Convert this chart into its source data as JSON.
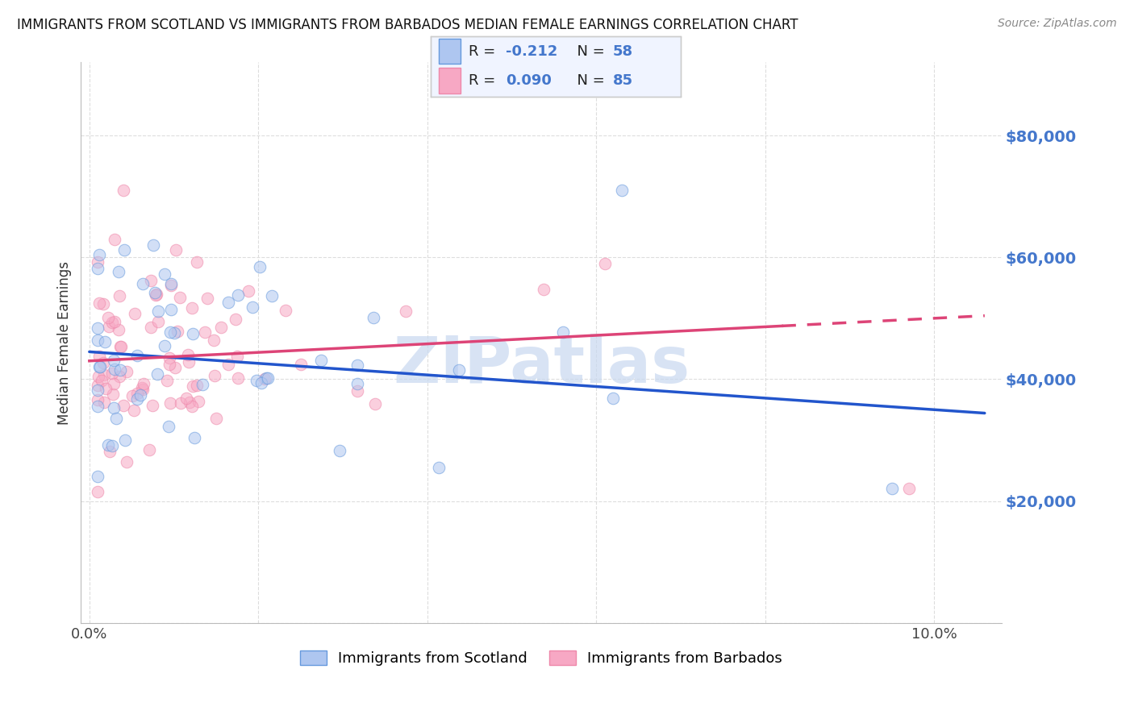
{
  "title": "IMMIGRANTS FROM SCOTLAND VS IMMIGRANTS FROM BARBADOS MEDIAN FEMALE EARNINGS CORRELATION CHART",
  "source": "Source: ZipAtlas.com",
  "ylabel": "Median Female Earnings",
  "xlim_min": -0.001,
  "xlim_max": 0.108,
  "ylim_min": 0,
  "ylim_max": 92000,
  "yticks": [
    0,
    20000,
    40000,
    60000,
    80000
  ],
  "ytick_labels": [
    "",
    "$20,000",
    "$40,000",
    "$60,000",
    "$80,000"
  ],
  "xticks": [
    0,
    0.02,
    0.04,
    0.06,
    0.08,
    0.1
  ],
  "xtick_labels": [
    "0.0%",
    "",
    "",
    "",
    "",
    "10.0%"
  ],
  "scotland_color": "#aec6f0",
  "barbados_color": "#f7a8c4",
  "scotland_edge_color": "#6699dd",
  "barbados_edge_color": "#ee88aa",
  "scotland_line_color": "#2255cc",
  "barbados_line_color": "#dd4477",
  "scotland_R": -0.212,
  "scotland_N": 58,
  "barbados_R": 0.09,
  "barbados_N": 85,
  "watermark": "ZIPatlas",
  "background_color": "#ffffff",
  "grid_color": "#dddddd",
  "ytick_label_color": "#4477cc",
  "legend_text_color": "#333333",
  "legend_value_color": "#4477cc",
  "title_fontsize": 12,
  "scatter_size": 110,
  "scatter_alpha": 0.55,
  "legend_box_color": "#f0f4ff",
  "legend_box_edge": "#cccccc"
}
